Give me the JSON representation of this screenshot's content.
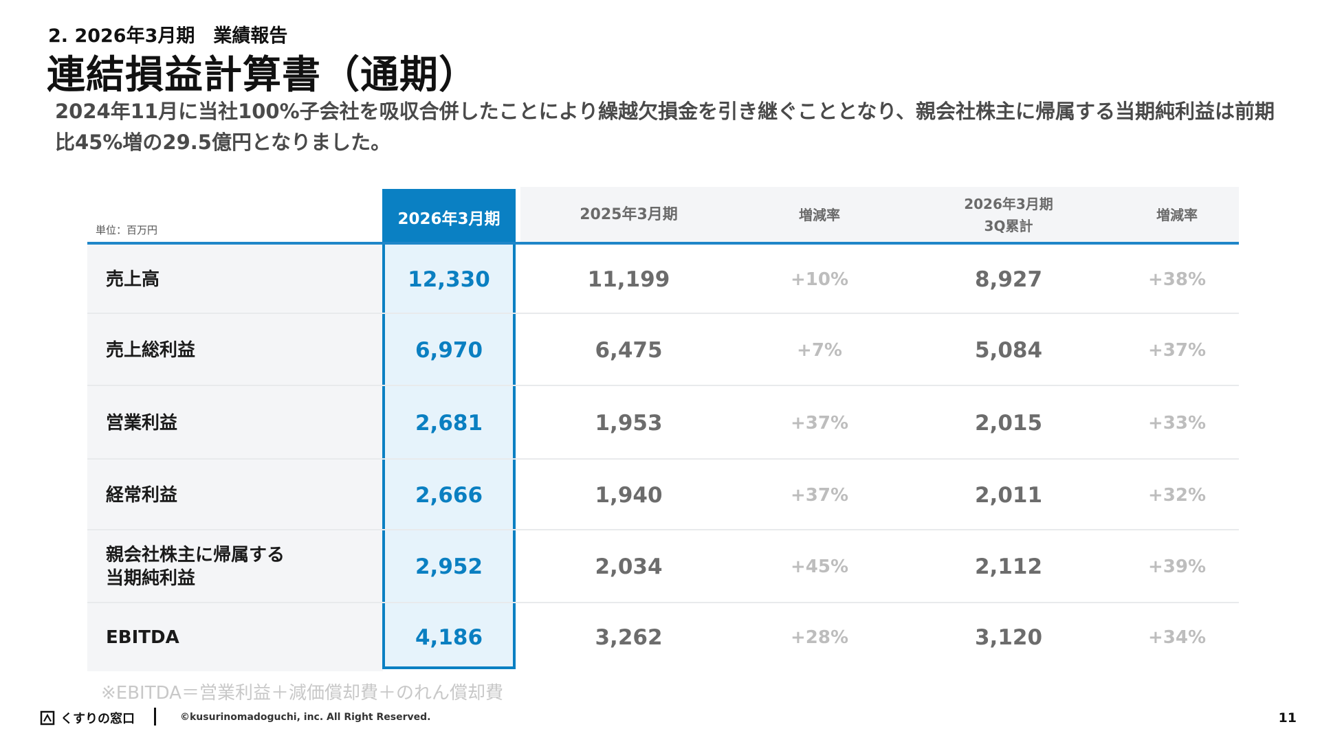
{
  "header": {
    "section_label": "2. 2026年3月期　業績報告",
    "title": "連結損益計算書（通期）",
    "summary": "2024年11月に当社100%子会社を吸収合併したことにより繰越欠損金を引き継ぐこととなり、親会社株主に帰属する当期純利益は前期比45%増の29.5億円となりました。"
  },
  "table": {
    "unit": "単位：百万円",
    "columns": {
      "current": "2026年3月期",
      "previous": "2025年3月期",
      "change1": "増減率",
      "q3_line1": "2026年3月期",
      "q3_line2": "3Q累計",
      "change2": "増減率"
    },
    "rows": [
      {
        "label": "売上高",
        "label2": "",
        "current": "12,330",
        "previous": "11,199",
        "change1": "+10%",
        "q3": "8,927",
        "change2": "+38%"
      },
      {
        "label": "売上総利益",
        "label2": "",
        "current": "6,970",
        "previous": "6,475",
        "change1": "+7%",
        "q3": "5,084",
        "change2": "+37%"
      },
      {
        "label": "営業利益",
        "label2": "",
        "current": "2,681",
        "previous": "1,953",
        "change1": "+37%",
        "q3": "2,015",
        "change2": "+33%"
      },
      {
        "label": "経常利益",
        "label2": "",
        "current": "2,666",
        "previous": "1,940",
        "change1": "+37%",
        "q3": "2,011",
        "change2": "+32%"
      },
      {
        "label": "親会社株主に帰属する",
        "label2": "当期純利益",
        "current": "2,952",
        "previous": "2,034",
        "change1": "+45%",
        "q3": "2,112",
        "change2": "+39%"
      },
      {
        "label": "EBITDA",
        "label2": "",
        "current": "4,186",
        "previous": "3,262",
        "change1": "+28%",
        "q3": "3,120",
        "change2": "+34%"
      }
    ]
  },
  "footnote": "※EBITDA＝営業利益＋減価償却費＋のれん償却費",
  "footer": {
    "logo_text": "くすりの窓口",
    "logo_icon": "kusurinomadoguchi-logo-icon",
    "copyright": "©kusurinomadoguchi, inc. All Right Reserved.",
    "page_number": "11"
  },
  "colors": {
    "accent": "#0a80c3",
    "highlight_bg": "#e6f3fb",
    "muted_text": "#6c6c6c",
    "percent_text": "#bdbdbd"
  }
}
